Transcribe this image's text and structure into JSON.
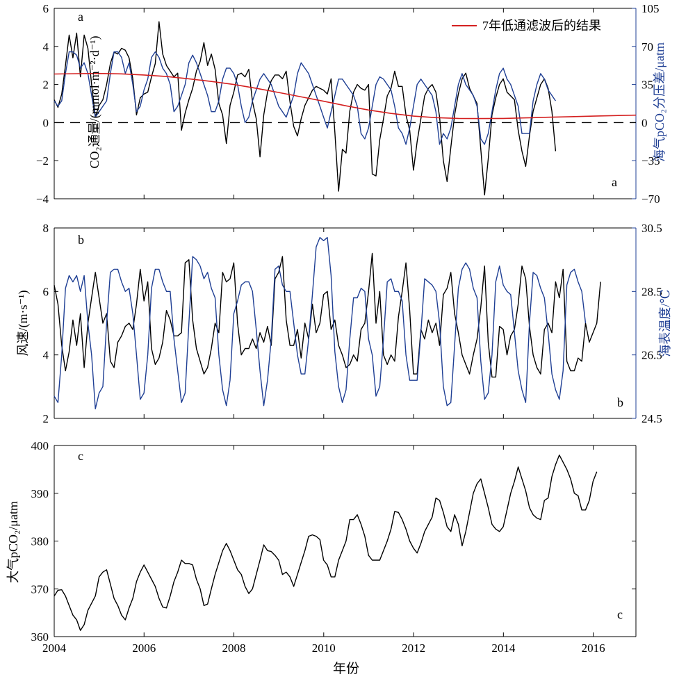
{
  "colors": {
    "black": "#000000",
    "blue": "#1f3f94",
    "red": "#d42020"
  },
  "xaxis": {
    "label": "年份",
    "ticks": [
      "2004",
      "2006",
      "2008",
      "2010",
      "2012",
      "2014",
      "2016"
    ],
    "range": [
      2004,
      2016.95
    ]
  },
  "chart_data": [
    {
      "type": "line",
      "panel": "a",
      "corner_labels": [
        "a",
        "a"
      ],
      "ylabel_left": "CO₂通量/(mmol·m⁻²·d⁻¹)",
      "ylabel_right": "海气pCO₂分压差/μatm",
      "ylim_left": [
        -4,
        6
      ],
      "yticks_left": [
        "-4",
        "-2",
        "0",
        "2",
        "4",
        "6"
      ],
      "ylim_right": [
        -70,
        105
      ],
      "yticks_right": [
        "-70",
        "-35",
        "0",
        "35",
        "70",
        "105"
      ],
      "legend": {
        "label": "7年低通滤波后的结果",
        "position": "top-right"
      },
      "zero_line": "dashed",
      "series": [
        {
          "axis": "left",
          "color": "black",
          "x_start": 2004.0,
          "x_step": 0.0833,
          "values": [
            1.2,
            0.8,
            1.5,
            3.0,
            4.6,
            3.4,
            4.7,
            2.4,
            4.6,
            3.9,
            2.0,
            0.3,
            0.9,
            1.2,
            2.0,
            3.1,
            3.7,
            3.6,
            3.9,
            3.8,
            3.4,
            2.3,
            0.4,
            1.3,
            1.5,
            1.6,
            2.4,
            3.1,
            5.3,
            3.6,
            3.0,
            2.7,
            2.4,
            2.6,
            -0.4,
            0.5,
            1.2,
            1.8,
            2.7,
            3.2,
            4.2,
            3.0,
            3.6,
            2.8,
            1.0,
            0.4,
            -1.1,
            0.9,
            1.6,
            2.5,
            2.6,
            2.4,
            2.8,
            1.1,
            0.2,
            -1.8,
            0.4,
            1.6,
            2.2,
            2.5,
            2.5,
            2.3,
            2.7,
            1.1,
            -0.2,
            -0.7,
            0.2,
            0.9,
            1.3,
            1.7,
            1.9,
            1.8,
            1.7,
            1.5,
            2.3,
            -0.5,
            -3.6,
            -1.4,
            -1.6,
            0.6,
            1.6,
            2.0,
            1.8,
            1.7,
            2.0,
            -2.7,
            -2.8,
            -0.9,
            0.2,
            1.4,
            1.8,
            2.7,
            1.9,
            1.9,
            0.4,
            -0.4,
            -2.5,
            -1.0,
            0.2,
            1.4,
            1.8,
            2.0,
            1.6,
            0.3,
            -2.0,
            -3.1,
            -1.3,
            0.4,
            1.5,
            2.3,
            2.6,
            1.8,
            1.4,
            1.0,
            -1.4,
            -3.8,
            -1.9,
            0.4,
            1.3,
            2.0,
            2.3,
            1.6,
            1.4,
            1.2,
            -0.4,
            -1.5,
            -2.3,
            -0.7,
            0.6,
            1.3,
            2.0,
            2.3,
            1.8,
            0.6,
            -1.5
          ]
        },
        {
          "axis": "right",
          "color": "blue",
          "x_start": 2004.0,
          "x_step": 0.0833,
          "values": [
            20,
            15,
            20,
            45,
            65,
            65,
            62,
            50,
            55,
            45,
            25,
            5,
            10,
            15,
            20,
            45,
            65,
            65,
            60,
            45,
            55,
            35,
            10,
            15,
            30,
            40,
            60,
            65,
            60,
            50,
            45,
            35,
            10,
            15,
            25,
            35,
            55,
            62,
            55,
            45,
            35,
            25,
            10,
            10,
            20,
            40,
            50,
            50,
            45,
            35,
            15,
            0,
            5,
            20,
            30,
            40,
            45,
            40,
            35,
            25,
            15,
            10,
            5,
            15,
            25,
            45,
            55,
            50,
            45,
            35,
            25,
            15,
            5,
            -5,
            10,
            25,
            40,
            40,
            35,
            30,
            25,
            15,
            -10,
            -15,
            -5,
            15,
            35,
            42,
            40,
            35,
            30,
            15,
            -5,
            -10,
            -20,
            -5,
            15,
            35,
            40,
            35,
            30,
            25,
            10,
            -20,
            -10,
            -15,
            -5,
            15,
            35,
            45,
            35,
            30,
            25,
            15,
            -15,
            -20,
            -10,
            10,
            30,
            45,
            50,
            40,
            35,
            25,
            15,
            -10,
            -10,
            -10,
            20,
            35,
            45,
            40,
            30,
            25,
            20
          ]
        },
        {
          "axis": "left",
          "color": "red",
          "x_start": 2004.0,
          "x_step": 0.5,
          "values": [
            2.55,
            2.57,
            2.58,
            2.56,
            2.5,
            2.42,
            2.3,
            2.16,
            2.0,
            1.8,
            1.58,
            1.35,
            1.12,
            0.88,
            0.66,
            0.48,
            0.34,
            0.26,
            0.22,
            0.21,
            0.22,
            0.25,
            0.28,
            0.31,
            0.34,
            0.37,
            0.39
          ]
        }
      ]
    },
    {
      "type": "line",
      "panel": "b",
      "corner_labels": [
        "b",
        "b"
      ],
      "ylabel_left": "风速/(m·s⁻¹)",
      "ylabel_right": "海表温度/℃",
      "ylim_left": [
        2,
        8
      ],
      "yticks_left": [
        "2",
        "4",
        "6",
        "8"
      ],
      "ylim_right": [
        24.5,
        30.5
      ],
      "yticks_right": [
        "24.5",
        "26.5",
        "28.5",
        "30.5"
      ],
      "series": [
        {
          "axis": "left",
          "color": "black",
          "x_start": 2004.0,
          "x_step": 0.0833,
          "values": [
            6.2,
            5.6,
            4.3,
            3.5,
            4.1,
            5.1,
            4.3,
            5.3,
            3.6,
            5.0,
            5.8,
            6.6,
            5.8,
            5.0,
            5.3,
            3.8,
            3.6,
            4.4,
            4.6,
            4.9,
            5.0,
            4.8,
            5.6,
            6.7,
            5.7,
            6.3,
            4.2,
            3.7,
            3.9,
            4.4,
            5.4,
            5.1,
            4.6,
            4.6,
            4.7,
            6.9,
            7.0,
            5.1,
            4.2,
            3.8,
            3.4,
            3.6,
            4.2,
            5.0,
            4.7,
            6.6,
            6.3,
            6.4,
            6.9,
            5.0,
            4.0,
            4.2,
            4.2,
            4.5,
            4.2,
            4.7,
            4.4,
            4.9,
            4.3,
            6.4,
            6.6,
            7.1,
            5.1,
            4.3,
            4.3,
            4.8,
            3.9,
            5.0,
            4.5,
            5.6,
            4.7,
            5.0,
            5.9,
            6.0,
            4.8,
            5.1,
            4.3,
            4.0,
            3.6,
            3.7,
            4.0,
            3.8,
            4.8,
            5.0,
            6.0,
            7.2,
            5.0,
            6.0,
            4.0,
            3.7,
            4.0,
            3.8,
            5.2,
            6.0,
            6.9,
            5.4,
            3.4,
            3.4,
            4.8,
            4.5,
            5.1,
            4.7,
            5.0,
            4.3,
            5.9,
            6.1,
            6.6,
            5.3,
            4.7,
            4.0,
            3.7,
            3.4,
            4.0,
            4.5,
            5.5,
            6.8,
            4.4,
            3.3,
            3.3,
            4.9,
            4.8,
            4.0,
            4.6,
            4.8,
            5.6,
            6.8,
            6.4,
            4.9,
            4.0,
            3.6,
            3.4,
            4.8,
            5.0,
            4.7,
            6.3,
            5.8,
            6.7,
            3.8,
            3.5,
            3.5,
            3.9,
            3.8,
            5.0,
            4.4,
            4.7,
            5.0,
            6.3
          ]
        },
        {
          "axis": "right",
          "color": "blue",
          "x_start": 2004.0,
          "x_step": 0.0833,
          "values": [
            25.2,
            25.0,
            26.5,
            28.6,
            29.0,
            28.8,
            29.0,
            28.5,
            29.0,
            27.5,
            26.5,
            24.8,
            25.3,
            25.5,
            27.5,
            29.1,
            29.2,
            29.2,
            28.8,
            28.5,
            28.6,
            27.8,
            26.5,
            25.1,
            25.3,
            26.5,
            28.6,
            29.2,
            29.2,
            28.8,
            28.5,
            28.5,
            27.0,
            26.0,
            25.0,
            25.3,
            27.5,
            29.6,
            29.5,
            29.3,
            28.9,
            29.1,
            28.6,
            28.3,
            26.5,
            25.4,
            24.9,
            25.7,
            27.8,
            28.2,
            28.7,
            28.8,
            28.8,
            28.5,
            27.3,
            26.0,
            24.9,
            25.7,
            27.0,
            29.2,
            29.3,
            28.7,
            28.5,
            28.5,
            27.5,
            26.5,
            25.9,
            25.9,
            27.0,
            28.4,
            29.9,
            30.2,
            30.1,
            30.2,
            29.0,
            26.6,
            25.5,
            25.0,
            25.4,
            27.0,
            28.3,
            28.3,
            28.6,
            28.5,
            27.0,
            26.5,
            25.2,
            25.5,
            27.0,
            28.8,
            28.9,
            28.5,
            28.5,
            28.2,
            26.5,
            25.7,
            25.7,
            25.7,
            27.2,
            28.9,
            28.8,
            28.7,
            28.5,
            27.5,
            25.5,
            24.9,
            25.0,
            26.8,
            28.6,
            29.2,
            29.4,
            29.2,
            28.6,
            28.3,
            26.3,
            25.1,
            25.3,
            26.5,
            28.8,
            29.3,
            28.7,
            28.5,
            28.4,
            27.2,
            26.0,
            25.4,
            25.0,
            27.5,
            29.1,
            29.0,
            28.6,
            28.3,
            27.2,
            25.9,
            25.4,
            25.1,
            26.0,
            28.7,
            29.1,
            29.2,
            28.8,
            28.5,
            27.5
          ]
        }
      ]
    },
    {
      "type": "line",
      "panel": "c",
      "corner_labels": [
        "c",
        "c"
      ],
      "ylabel_left": "大气pCO₂/μatm",
      "ylim_left": [
        360,
        400
      ],
      "yticks_left": [
        "360",
        "370",
        "380",
        "390",
        "400"
      ],
      "series": [
        {
          "axis": "left",
          "color": "black",
          "x_start": 2004.0,
          "x_step": 0.0833,
          "values": [
            368.5,
            369.7,
            369.8,
            368.5,
            366.5,
            364.5,
            363.5,
            361.3,
            362.5,
            365.5,
            367.0,
            368.5,
            372.5,
            373.5,
            374.0,
            371.0,
            368.0,
            366.5,
            364.5,
            363.5,
            366.0,
            368.0,
            371.5,
            373.5,
            375.0,
            373.5,
            372.0,
            370.5,
            368.0,
            366.2,
            366.0,
            368.5,
            371.5,
            373.5,
            376.0,
            375.3,
            375.3,
            375.0,
            372.0,
            370.0,
            366.5,
            366.8,
            370.0,
            373.0,
            375.5,
            378.0,
            379.5,
            378.0,
            376.0,
            374.0,
            373.0,
            370.5,
            369.0,
            370.0,
            373.0,
            376.0,
            379.2,
            378.0,
            377.8,
            377.0,
            376.0,
            373.0,
            373.5,
            372.5,
            370.5,
            373.0,
            375.5,
            378.0,
            381.0,
            381.3,
            381.0,
            380.3,
            376.0,
            375.0,
            372.5,
            372.5,
            376.0,
            378.0,
            380.0,
            384.5,
            384.5,
            385.5,
            383.5,
            381.0,
            377.0,
            376.0,
            376.0,
            376.0,
            378.0,
            380.0,
            382.5,
            386.2,
            386.0,
            384.5,
            382.5,
            380.0,
            378.5,
            377.5,
            379.5,
            382.0,
            383.5,
            385.0,
            389.0,
            388.5,
            386.0,
            383.0,
            382.0,
            385.5,
            383.5,
            379.0,
            382.0,
            386.0,
            390.0,
            392.0,
            393.0,
            390.0,
            387.0,
            383.5,
            382.5,
            382.0,
            383.0,
            386.5,
            390.0,
            392.5,
            395.5,
            393.0,
            390.5,
            387.0,
            385.5,
            384.8,
            384.5,
            388.5,
            389.0,
            393.5,
            396.0,
            398.0,
            396.5,
            395.0,
            393.0,
            390.0,
            389.5,
            386.5,
            386.5,
            388.5,
            392.5,
            394.5
          ]
        }
      ]
    }
  ]
}
